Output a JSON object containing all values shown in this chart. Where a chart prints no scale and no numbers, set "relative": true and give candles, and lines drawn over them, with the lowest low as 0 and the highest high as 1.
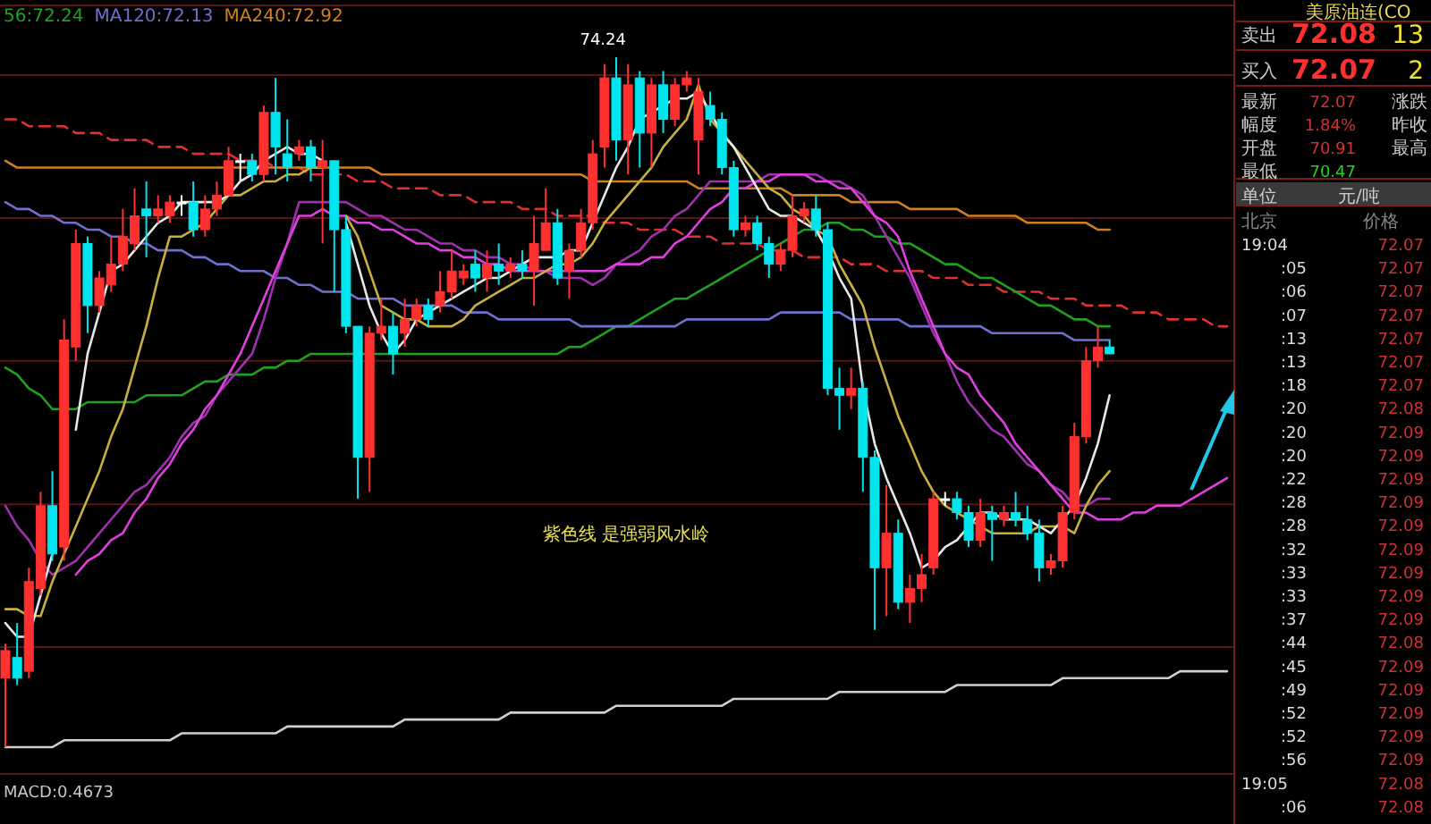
{
  "chart_data": [
    {
      "type": "candlestick",
      "relative": true,
      "legend": "top left",
      "ref_lines": [
        {
          "axis": "y",
          "value": 0.974,
          "color": "#5a1414"
        },
        {
          "axis": "y",
          "value": 0.767,
          "color": "#5a1414"
        },
        {
          "axis": "y",
          "value": 0.56,
          "color": "#5a1414"
        },
        {
          "axis": "y",
          "value": 0.352,
          "color": "#5a1414"
        },
        {
          "axis": "y",
          "value": 0.145,
          "color": "#5a1414"
        }
      ],
      "categories": [
        null,
        null,
        null,
        null,
        null,
        null,
        null,
        null,
        null,
        null,
        null,
        null,
        null,
        null,
        null,
        null,
        null,
        null,
        null,
        null,
        null,
        null,
        null,
        null,
        null,
        null,
        null,
        null,
        null,
        null,
        null,
        null,
        null,
        null,
        null,
        null,
        null,
        null,
        null,
        null,
        null,
        null,
        null,
        null,
        null,
        null,
        null,
        null,
        null,
        null,
        null,
        null,
        null,
        null,
        null,
        null,
        null,
        null,
        null,
        null,
        null,
        null,
        null,
        null,
        null,
        null,
        null,
        null,
        null,
        null,
        null,
        null,
        null,
        null,
        null,
        null,
        null,
        null,
        null,
        null,
        null,
        null,
        null,
        null,
        null,
        null,
        null,
        null,
        null,
        null,
        null,
        null,
        null,
        null,
        null,
        null,
        null,
        null,
        null,
        null,
        null,
        null,
        null,
        null,
        null
      ],
      "ohlc": [
        [
          0.1,
          0.15,
          0,
          0.14
        ],
        [
          0.13,
          0.18,
          0.09,
          0.1
        ],
        [
          0.11,
          0.26,
          0.1,
          0.24
        ],
        [
          0.23,
          0.37,
          0.22,
          0.35
        ],
        [
          0.35,
          0.4,
          0.27,
          0.28
        ],
        [
          0.29,
          0.62,
          0.27,
          0.59
        ],
        [
          0.58,
          0.75,
          0.56,
          0.73
        ],
        [
          0.73,
          0.74,
          0.6,
          0.64
        ],
        [
          0.64,
          0.69,
          0.63,
          0.68
        ],
        [
          0.67,
          0.74,
          0.66,
          0.7
        ],
        [
          0.7,
          0.78,
          0.69,
          0.74
        ],
        [
          0.73,
          0.81,
          0.72,
          0.77
        ],
        [
          0.78,
          0.82,
          0.71,
          0.77
        ],
        [
          0.77,
          0.8,
          0.76,
          0.78
        ],
        [
          0.77,
          0.8,
          0.76,
          0.79
        ],
        [
          0.79,
          0.8,
          0.77,
          0.79
        ],
        [
          0.79,
          0.82,
          0.74,
          0.75
        ],
        [
          0.75,
          0.8,
          0.74,
          0.78
        ],
        [
          0.78,
          0.82,
          0.77,
          0.8
        ],
        [
          0.8,
          0.87,
          0.8,
          0.85
        ],
        [
          0.85,
          0.86,
          0.82,
          0.85
        ],
        [
          0.85,
          0.86,
          0.82,
          0.83
        ],
        [
          0.83,
          0.93,
          0.82,
          0.92
        ],
        [
          0.92,
          0.97,
          0.83,
          0.87
        ],
        [
          0.86,
          0.91,
          0.82,
          0.84
        ],
        [
          0.86,
          0.88,
          0.85,
          0.87
        ],
        [
          0.87,
          0.88,
          0.82,
          0.84
        ],
        [
          0.84,
          0.88,
          0.73,
          0.85
        ],
        [
          0.85,
          0.85,
          0.66,
          0.75
        ],
        [
          0.75,
          0.77,
          0.6,
          0.61
        ],
        [
          0.61,
          0.61,
          0.36,
          0.42
        ],
        [
          0.42,
          0.61,
          0.37,
          0.6
        ],
        [
          0.6,
          0.65,
          0.59,
          0.61
        ],
        [
          0.61,
          0.63,
          0.54,
          0.57
        ],
        [
          0.6,
          0.65,
          0.58,
          0.62
        ],
        [
          0.62,
          0.65,
          0.61,
          0.64
        ],
        [
          0.64,
          0.65,
          0.61,
          0.62
        ],
        [
          0.64,
          0.69,
          0.63,
          0.66
        ],
        [
          0.66,
          0.72,
          0.65,
          0.69
        ],
        [
          0.68,
          0.7,
          0.67,
          0.69
        ],
        [
          0.7,
          0.72,
          0.66,
          0.68
        ],
        [
          0.68,
          0.72,
          0.66,
          0.7
        ],
        [
          0.7,
          0.73,
          0.67,
          0.69
        ],
        [
          0.69,
          0.71,
          0.68,
          0.7
        ],
        [
          0.7,
          0.72,
          0.68,
          0.69
        ],
        [
          0.69,
          0.77,
          0.64,
          0.73
        ],
        [
          0.72,
          0.81,
          0.72,
          0.76
        ],
        [
          0.76,
          0.78,
          0.67,
          0.68
        ],
        [
          0.69,
          0.73,
          0.65,
          0.72
        ],
        [
          0.72,
          0.78,
          0.71,
          0.76
        ],
        [
          0.76,
          0.88,
          0.75,
          0.86
        ],
        [
          0.87,
          0.99,
          0.84,
          0.97
        ],
        [
          0.97,
          1,
          0.85,
          0.88
        ],
        [
          0.88,
          0.99,
          0.83,
          0.96
        ],
        [
          0.97,
          0.98,
          0.84,
          0.89
        ],
        [
          0.89,
          0.97,
          0.84,
          0.96
        ],
        [
          0.96,
          0.98,
          0.89,
          0.91
        ],
        [
          0.91,
          0.97,
          0.9,
          0.96
        ],
        [
          0.96,
          0.98,
          0.95,
          0.97
        ],
        [
          0.88,
          0.97,
          0.83,
          0.95
        ],
        [
          0.93,
          0.95,
          0.9,
          0.91
        ],
        [
          0.91,
          0.92,
          0.83,
          0.84
        ],
        [
          0.84,
          0.85,
          0.74,
          0.75
        ],
        [
          0.75,
          0.77,
          0.74,
          0.76
        ],
        [
          0.76,
          0.77,
          0.72,
          0.73
        ],
        [
          0.73,
          0.74,
          0.68,
          0.7
        ],
        [
          0.7,
          0.73,
          0.69,
          0.72
        ],
        [
          0.72,
          0.8,
          0.71,
          0.77
        ],
        [
          0.77,
          0.79,
          0.76,
          0.78
        ],
        [
          0.78,
          0.8,
          0.74,
          0.75
        ],
        [
          0.75,
          0.76,
          0.51,
          0.52
        ],
        [
          0.52,
          0.55,
          0.46,
          0.51
        ],
        [
          0.51,
          0.55,
          0.49,
          0.52
        ],
        [
          0.52,
          0.53,
          0.37,
          0.42
        ],
        [
          0.42,
          0.43,
          0.17,
          0.26
        ],
        [
          0.26,
          0.38,
          0.19,
          0.31
        ],
        [
          0.31,
          0.33,
          0.2,
          0.21
        ],
        [
          0.21,
          0.25,
          0.18,
          0.23
        ],
        [
          0.23,
          0.28,
          0.21,
          0.25
        ],
        [
          0.26,
          0.37,
          0.25,
          0.36
        ],
        [
          0.36,
          0.37,
          0.35,
          0.36
        ],
        [
          0.36,
          0.37,
          0.33,
          0.34
        ],
        [
          0.34,
          0.35,
          0.29,
          0.3
        ],
        [
          0.3,
          0.36,
          0.29,
          0.34
        ],
        [
          0.34,
          0.35,
          0.27,
          0.33
        ],
        [
          0.33,
          0.35,
          0.32,
          0.34
        ],
        [
          0.34,
          0.37,
          0.32,
          0.33
        ],
        [
          0.33,
          0.35,
          0.3,
          0.31
        ],
        [
          0.31,
          0.33,
          0.24,
          0.26
        ],
        [
          0.26,
          0.28,
          0.25,
          0.27
        ],
        [
          0.27,
          0.35,
          0.26,
          0.34
        ],
        [
          0.34,
          0.47,
          0.33,
          0.45
        ],
        [
          0.45,
          0.58,
          0.44,
          0.56
        ],
        [
          0.56,
          0.61,
          0.55,
          0.58
        ],
        [
          0.58,
          0.59,
          0.57,
          0.57
        ],
        null,
        null,
        null,
        null,
        null,
        null,
        null,
        null,
        null,
        null
      ],
      "series": [
        {
          "type": "line",
          "color": "#e03030",
          "line_style": "dashed",
          "values": [
            0.91,
            0.91,
            0.9,
            0.9,
            0.9,
            0.9,
            0.89,
            0.89,
            0.89,
            0.88,
            0.88,
            0.88,
            0.88,
            0.87,
            0.87,
            0.87,
            0.86,
            0.86,
            0.86,
            0.86,
            0.85,
            0.85,
            0.85,
            0.84,
            0.84,
            0.84,
            0.83,
            0.83,
            0.83,
            0.83,
            0.82,
            0.82,
            0.82,
            0.81,
            0.81,
            0.81,
            0.81,
            0.8,
            0.8,
            0.8,
            0.79,
            0.79,
            0.79,
            0.79,
            0.78,
            0.78,
            0.78,
            0.77,
            0.77,
            0.77,
            0.77,
            0.76,
            0.76,
            0.76,
            0.75,
            0.75,
            0.75,
            0.75,
            0.74,
            0.74,
            0.74,
            0.73,
            0.73,
            0.73,
            0.73,
            0.72,
            0.72,
            0.72,
            0.71,
            0.71,
            0.71,
            0.71,
            0.7,
            0.7,
            0.7,
            0.69,
            0.69,
            0.69,
            0.69,
            0.68,
            0.68,
            0.68,
            0.67,
            0.67,
            0.67,
            0.66,
            0.66,
            0.66,
            0.66,
            0.65,
            0.65,
            0.65,
            0.64,
            0.64,
            0.64,
            0.64,
            0.63,
            0.63,
            0.63,
            0.62,
            0.62,
            0.62,
            0.62,
            0.61,
            0.61
          ]
        },
        {
          "type": "line",
          "color": "#d0d0d0",
          "values": [
            0,
            0,
            0,
            0,
            0,
            0.01,
            0.01,
            0.01,
            0.01,
            0.01,
            0.01,
            0.01,
            0.01,
            0.01,
            0.01,
            0.02,
            0.02,
            0.02,
            0.02,
            0.02,
            0.02,
            0.02,
            0.02,
            0.02,
            0.03,
            0.03,
            0.03,
            0.03,
            0.03,
            0.03,
            0.03,
            0.03,
            0.03,
            0.03,
            0.04,
            0.04,
            0.04,
            0.04,
            0.04,
            0.04,
            0.04,
            0.04,
            0.04,
            0.05,
            0.05,
            0.05,
            0.05,
            0.05,
            0.05,
            0.05,
            0.05,
            0.05,
            0.06,
            0.06,
            0.06,
            0.06,
            0.06,
            0.06,
            0.06,
            0.06,
            0.06,
            0.06,
            0.07,
            0.07,
            0.07,
            0.07,
            0.07,
            0.07,
            0.07,
            0.07,
            0.07,
            0.08,
            0.08,
            0.08,
            0.08,
            0.08,
            0.08,
            0.08,
            0.08,
            0.08,
            0.08,
            0.09,
            0.09,
            0.09,
            0.09,
            0.09,
            0.09,
            0.09,
            0.09,
            0.09,
            0.1,
            0.1,
            0.1,
            0.1,
            0.1,
            0.1,
            0.1,
            0.1,
            0.1,
            0.1,
            0.11,
            0.11,
            0.11,
            0.11,
            0.11
          ]
        },
        {
          "type": "line",
          "name": "56:72.24",
          "color": "#20a020",
          "values": [
            0.55,
            0.54,
            0.52,
            0.51,
            0.49,
            0.49,
            0.49,
            0.5,
            0.5,
            0.5,
            0.5,
            0.5,
            0.51,
            0.51,
            0.51,
            0.51,
            0.52,
            0.53,
            0.53,
            0.54,
            0.54,
            0.54,
            0.55,
            0.55,
            0.56,
            0.56,
            0.57,
            0.57,
            0.57,
            0.57,
            0.57,
            0.57,
            0.57,
            0.57,
            0.57,
            0.57,
            0.57,
            0.57,
            0.57,
            0.57,
            0.57,
            0.57,
            0.57,
            0.57,
            0.57,
            0.57,
            0.57,
            0.57,
            0.58,
            0.58,
            0.59,
            0.6,
            0.61,
            0.61,
            0.62,
            0.63,
            0.64,
            0.65,
            0.65,
            0.66,
            0.67,
            0.68,
            0.69,
            0.7,
            0.71,
            0.72,
            0.73,
            0.74,
            0.75,
            0.75,
            0.76,
            0.76,
            0.75,
            0.75,
            0.74,
            0.74,
            0.73,
            0.73,
            0.72,
            0.71,
            0.7,
            0.7,
            0.69,
            0.68,
            0.68,
            0.67,
            0.66,
            0.65,
            0.64,
            0.64,
            0.63,
            0.62,
            0.62,
            0.61,
            0.61,
            null,
            null,
            null,
            null,
            null,
            null,
            null,
            null,
            null,
            null
          ]
        },
        {
          "type": "line",
          "name": "MA120:72.13",
          "color": "#7070d0",
          "values": [
            0.79,
            0.78,
            0.78,
            0.77,
            0.77,
            0.76,
            0.76,
            0.75,
            0.75,
            0.74,
            0.74,
            0.73,
            0.73,
            0.72,
            0.72,
            0.72,
            0.71,
            0.71,
            0.7,
            0.7,
            0.69,
            0.69,
            0.69,
            0.68,
            0.68,
            0.67,
            0.67,
            0.66,
            0.66,
            0.66,
            0.65,
            0.65,
            0.65,
            0.65,
            0.64,
            0.64,
            0.64,
            0.64,
            0.64,
            0.63,
            0.63,
            0.63,
            0.62,
            0.62,
            0.62,
            0.62,
            0.62,
            0.62,
            0.62,
            0.61,
            0.61,
            0.61,
            0.61,
            0.61,
            0.61,
            0.61,
            0.61,
            0.61,
            0.62,
            0.62,
            0.62,
            0.62,
            0.62,
            0.62,
            0.62,
            0.62,
            0.63,
            0.63,
            0.63,
            0.63,
            0.63,
            0.63,
            0.62,
            0.62,
            0.62,
            0.62,
            0.62,
            0.61,
            0.61,
            0.61,
            0.61,
            0.61,
            0.61,
            0.61,
            0.6,
            0.6,
            0.6,
            0.6,
            0.6,
            0.6,
            0.6,
            0.59,
            0.59,
            0.59,
            0.59,
            null,
            null,
            null,
            null,
            null,
            null,
            null,
            null,
            null,
            null
          ]
        },
        {
          "type": "line",
          "name": "MA240:72.92",
          "color": "#d08020",
          "values": [
            0.85,
            0.84,
            0.84,
            0.84,
            0.84,
            0.84,
            0.84,
            0.84,
            0.84,
            0.84,
            0.84,
            0.84,
            0.84,
            0.84,
            0.84,
            0.84,
            0.84,
            0.84,
            0.84,
            0.84,
            0.84,
            0.84,
            0.84,
            0.84,
            0.84,
            0.84,
            0.84,
            0.84,
            0.84,
            0.84,
            0.84,
            0.84,
            0.83,
            0.83,
            0.83,
            0.83,
            0.83,
            0.83,
            0.83,
            0.83,
            0.83,
            0.83,
            0.83,
            0.83,
            0.83,
            0.83,
            0.83,
            0.83,
            0.83,
            0.83,
            0.82,
            0.82,
            0.82,
            0.82,
            0.82,
            0.82,
            0.82,
            0.82,
            0.82,
            0.81,
            0.81,
            0.81,
            0.81,
            0.81,
            0.81,
            0.81,
            0.81,
            0.8,
            0.8,
            0.8,
            0.8,
            0.8,
            0.79,
            0.79,
            0.79,
            0.79,
            0.79,
            0.78,
            0.78,
            0.78,
            0.78,
            0.78,
            0.77,
            0.77,
            0.77,
            0.77,
            0.77,
            0.76,
            0.76,
            0.76,
            0.76,
            0.76,
            0.76,
            0.75,
            0.75,
            null,
            null,
            null,
            null,
            null,
            null,
            null,
            null,
            null,
            null
          ]
        },
        {
          "type": "line",
          "color": "#a030b0",
          "values": [
            0.35,
            0.32,
            0.3,
            0.27,
            0.25,
            0.26,
            0.27,
            0.29,
            0.31,
            0.33,
            0.35,
            0.37,
            0.38,
            0.4,
            0.42,
            0.45,
            0.47,
            0.48,
            0.51,
            0.53,
            0.55,
            0.57,
            0.62,
            0.68,
            0.73,
            0.79,
            0.79,
            0.79,
            0.79,
            0.79,
            0.78,
            0.77,
            0.77,
            0.76,
            0.75,
            0.75,
            0.74,
            0.73,
            0.73,
            0.72,
            0.72,
            0.71,
            0.71,
            0.7,
            0.7,
            0.69,
            0.69,
            0.68,
            0.68,
            0.68,
            0.67,
            0.68,
            0.7,
            0.71,
            0.72,
            0.74,
            0.75,
            0.77,
            0.78,
            0.8,
            0.82,
            0.82,
            0.82,
            0.82,
            0.82,
            0.83,
            0.83,
            0.83,
            0.83,
            0.83,
            0.82,
            0.82,
            0.81,
            0.8,
            0.77,
            0.74,
            0.71,
            0.68,
            0.64,
            0.6,
            0.57,
            0.53,
            0.5,
            0.48,
            0.46,
            0.45,
            0.43,
            0.41,
            0.4,
            0.38,
            0.37,
            0.35,
            0.35,
            0.36,
            0.36,
            null,
            null,
            null,
            null,
            null,
            null,
            null,
            null,
            null,
            null
          ]
        },
        {
          "type": "line",
          "color": "#e040e0",
          "values": [
            null,
            null,
            null,
            null,
            null,
            null,
            0.25,
            0.27,
            0.28,
            0.3,
            0.31,
            0.34,
            0.36,
            0.39,
            0.41,
            0.44,
            0.46,
            0.49,
            0.51,
            0.54,
            0.57,
            0.61,
            0.65,
            0.69,
            0.73,
            0.77,
            0.77,
            0.78,
            0.77,
            0.77,
            0.76,
            0.76,
            0.75,
            0.75,
            0.74,
            0.73,
            0.73,
            0.72,
            0.72,
            0.71,
            0.71,
            0.7,
            0.7,
            0.69,
            0.69,
            0.69,
            0.69,
            0.69,
            0.69,
            0.69,
            0.69,
            0.69,
            0.7,
            0.7,
            0.7,
            0.71,
            0.71,
            0.73,
            0.74,
            0.76,
            0.78,
            0.79,
            0.81,
            0.81,
            0.82,
            0.82,
            0.83,
            0.83,
            0.83,
            0.82,
            0.82,
            0.81,
            0.81,
            0.79,
            0.77,
            0.76,
            0.74,
            0.69,
            0.65,
            0.61,
            0.57,
            0.55,
            0.54,
            0.51,
            0.49,
            0.47,
            0.44,
            0.42,
            0.4,
            0.38,
            0.36,
            0.34,
            0.34,
            0.33,
            0.33,
            0.33,
            0.34,
            0.34,
            0.35,
            0.35,
            0.35,
            0.36,
            0.37,
            0.38,
            0.39
          ]
        },
        {
          "type": "line",
          "color": "#c8b040",
          "values": [
            0.2,
            0.2,
            0.19,
            0.19,
            0.24,
            0.28,
            0.32,
            0.36,
            0.4,
            0.45,
            0.49,
            0.55,
            0.61,
            0.68,
            0.74,
            0.74,
            0.75,
            0.76,
            0.78,
            0.8,
            0.8,
            0.81,
            0.82,
            0.82,
            0.83,
            0.83,
            0.84,
            0.84,
            null,
            0.77,
            0.74,
            0.69,
            0.64,
            0.63,
            0.62,
            0.62,
            0.61,
            0.61,
            0.61,
            0.62,
            0.64,
            0.65,
            0.66,
            0.67,
            0.68,
            0.68,
            0.69,
            0.7,
            0.7,
            0.71,
            0.73,
            0.76,
            0.78,
            0.8,
            0.82,
            0.84,
            0.87,
            0.89,
            0.91,
            0.96,
            0.91,
            0.89,
            0.87,
            0.85,
            0.83,
            0.81,
            0.8,
            0.78,
            0.77,
            0.75,
            0.74,
            0.7,
            0.67,
            0.64,
            0.58,
            0.53,
            0.48,
            0.44,
            0.4,
            0.37,
            0.35,
            0.34,
            0.33,
            0.32,
            0.31,
            0.31,
            0.31,
            0.31,
            0.32,
            0.32,
            0.32,
            0.31,
            0.35,
            0.38,
            0.4,
            null,
            null,
            null,
            null,
            null,
            null,
            null,
            null,
            null,
            null
          ]
        },
        {
          "type": "line",
          "color": "#e8e8e8",
          "values": [
            0.18,
            0.16,
            0.16,
            0.22,
            0.28,
            null,
            0.46,
            0.57,
            0.63,
            0.69,
            0.7,
            0.72,
            0.74,
            0.76,
            0.77,
            0.79,
            0.79,
            0.79,
            0.79,
            0.8,
            0.82,
            0.83,
            0.85,
            0.86,
            0.87,
            0.86,
            0.86,
            0.85,
            null,
            0.76,
            0.7,
            0.64,
            0.6,
            0.57,
            0.59,
            0.62,
            0.63,
            0.64,
            0.65,
            0.66,
            0.67,
            0.68,
            0.68,
            0.69,
            0.7,
            0.71,
            0.71,
            0.71,
            0.72,
            0.72,
            0.76,
            0.8,
            0.84,
            0.87,
            0.91,
            0.92,
            0.93,
            0.94,
            0.94,
            0.95,
            0.92,
            0.89,
            0.87,
            0.84,
            0.81,
            0.78,
            0.77,
            0.77,
            0.76,
            0.75,
            0.72,
            0.68,
            0.65,
            0.52,
            0.44,
            0.39,
            0.35,
            0.31,
            0.26,
            0.27,
            0.29,
            0.3,
            0.32,
            0.34,
            0.34,
            0.33,
            0.33,
            0.33,
            0.32,
            0.31,
            0.33,
            0.35,
            0.39,
            0.44,
            0.51,
            null,
            null,
            null,
            null,
            null,
            null,
            null,
            null,
            null,
            null
          ]
        }
      ],
      "annotations": [
        "74.24",
        "紫色线 是强弱风水岭",
        "MACD:0.4673"
      ]
    },
    {
      "type": "other",
      "title": "美原油连(CO",
      "annotations": [
        "卖出",
        "72.08",
        "13",
        "买入",
        "72.07",
        "2",
        "最新",
        "72.07",
        "涨跌",
        "幅度",
        "1.84%",
        "昨收",
        "开盘",
        "70.91",
        "最高",
        "最低",
        "70.47",
        "单位",
        "元/吨",
        "北京",
        "价格",
        "19:04",
        "72.07",
        ":05",
        "72.07",
        ":06",
        "72.07",
        ":07",
        "72.07",
        ":13",
        "72.07",
        ":13",
        "72.07",
        ":18",
        "72.07",
        ":20",
        "72.08",
        ":20",
        "72.09",
        ":20",
        "72.09",
        ":22",
        "72.09",
        ":28",
        "72.09",
        ":28",
        "72.09",
        ":32",
        "72.09",
        ":33",
        "72.09",
        ":33",
        "72.09",
        ":37",
        "72.09",
        ":44",
        "72.08",
        ":45",
        "72.09",
        ":49",
        "72.09",
        ":52",
        "72.09",
        ":52",
        "72.09",
        ":56",
        "72.09",
        "19:05",
        "72.08",
        ":06",
        "72.08"
      ]
    }
  ]
}
